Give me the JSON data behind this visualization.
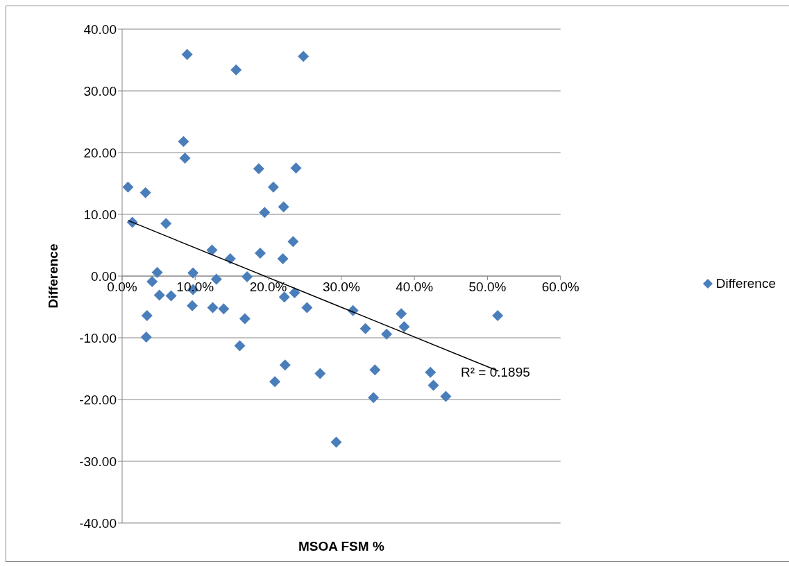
{
  "chart_data": {
    "type": "scatter",
    "xlabel": "MSOA FSM %",
    "ylabel": "Difference",
    "xlim": [
      0,
      60
    ],
    "xticks": [
      {
        "value": 0,
        "label": "0.0%"
      },
      {
        "value": 10,
        "label": "10.0%"
      },
      {
        "value": 20,
        "label": "20.0%"
      },
      {
        "value": 30,
        "label": "30.0%"
      },
      {
        "value": 40,
        "label": "40.0%"
      },
      {
        "value": 50,
        "label": "50.0%"
      },
      {
        "value": 60,
        "label": "60.0%"
      }
    ],
    "ylim": [
      -40,
      40
    ],
    "yticks": [
      {
        "value": -40,
        "label": "-40.00"
      },
      {
        "value": -30,
        "label": "-30.00"
      },
      {
        "value": -20,
        "label": "-20.00"
      },
      {
        "value": -10,
        "label": "-10.00"
      },
      {
        "value": 0,
        "label": "0.00"
      },
      {
        "value": 10,
        "label": "10.00"
      },
      {
        "value": 20,
        "label": "20.00"
      },
      {
        "value": 30,
        "label": "30.00"
      },
      {
        "value": 40,
        "label": "40.00"
      }
    ],
    "grid": "y",
    "legend": "right",
    "series": [
      {
        "name": "Difference",
        "marker": "diamond",
        "color": "#4a7ebb",
        "x": [
          0.8,
          1.4,
          3.2,
          3.4,
          3.3,
          4.1,
          4.8,
          5.1,
          6.0,
          6.7,
          8.4,
          8.6,
          8.9,
          9.7,
          9.7,
          9.6,
          12.3,
          12.4,
          12.9,
          13.9,
          14.8,
          15.6,
          16.1,
          16.8,
          17.1,
          18.7,
          18.9,
          19.5,
          20.7,
          20.9,
          22.1,
          22.0,
          22.2,
          22.3,
          23.4,
          23.6,
          23.8,
          24.8,
          25.3,
          27.1,
          29.3,
          31.6,
          33.3,
          34.4,
          34.6,
          36.2,
          38.2,
          38.6,
          42.2,
          42.6,
          44.3,
          51.4
        ],
        "values": [
          14.4,
          8.7,
          13.5,
          -6.4,
          -9.9,
          -0.9,
          0.6,
          -3.1,
          8.5,
          -3.2,
          21.8,
          19.1,
          35.9,
          0.5,
          -2.2,
          -4.8,
          4.2,
          -5.1,
          -0.5,
          -5.3,
          2.8,
          33.4,
          -11.3,
          -6.9,
          -0.1,
          17.4,
          3.7,
          10.3,
          14.4,
          -17.1,
          11.2,
          2.8,
          -3.4,
          -14.4,
          5.6,
          -2.7,
          17.5,
          35.6,
          -5.1,
          -15.8,
          -26.9,
          -5.6,
          -8.5,
          -19.7,
          -15.2,
          -9.4,
          -6.1,
          -8.2,
          -15.6,
          -17.7,
          -19.5,
          -6.4
        ]
      },
      {
        "type": "line",
        "marker": "none",
        "color": "#000000",
        "x": [
          0.8,
          51.5
        ],
        "values": [
          9.0,
          -15.4
        ]
      }
    ],
    "annotations": [
      "R² = 0.1895"
    ]
  }
}
